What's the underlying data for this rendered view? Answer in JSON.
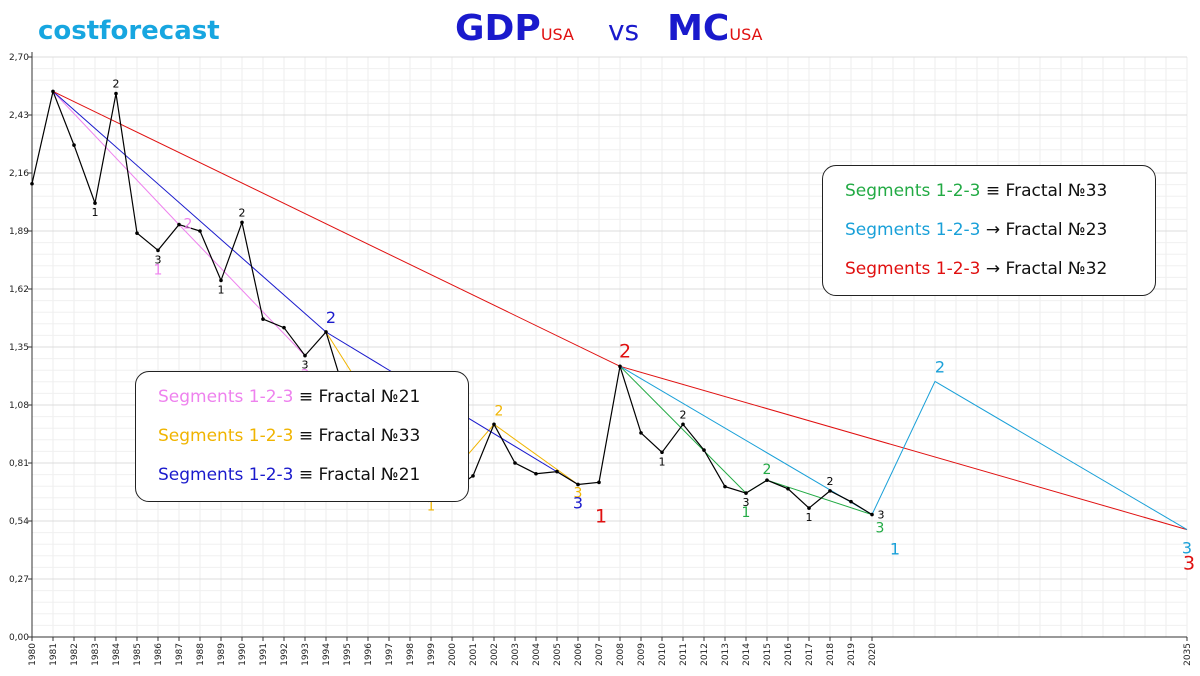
{
  "brand": "costforecast",
  "title": {
    "left": "GDP",
    "left_sub": "USA",
    "vs": "vs",
    "right": "MC",
    "right_sub": "USA"
  },
  "legend_left": [
    {
      "segment": "Segments 1-2-3",
      "relation": "≡ Fractal №21",
      "color": "#ee82ee"
    },
    {
      "segment": "Segments 1-2-3",
      "relation": "≡ Fractal №33",
      "color": "#f0b400"
    },
    {
      "segment": "Segments 1-2-3",
      "relation": "≡ Fractal №21",
      "color": "#1a1acc"
    }
  ],
  "legend_right": [
    {
      "segment": "Segments 1-2-3",
      "relation": "≡ Fractal №33",
      "color": "#22aa44"
    },
    {
      "segment": "Segments 1-2-3",
      "relation": "→ Fractal №23",
      "color": "#19a0d8"
    },
    {
      "segment": "Segments 1-2-3",
      "relation": "→ Fractal №32",
      "color": "#e01010"
    }
  ],
  "chart_data": {
    "type": "line",
    "title": "GDP USA vs MC USA",
    "xlim": [
      1980,
      2035
    ],
    "ylim": [
      0,
      2.7
    ],
    "y_ticks": [
      "0,00",
      "0,27",
      "0,54",
      "0,81",
      "1,08",
      "1,35",
      "1,62",
      "1,89",
      "2,16",
      "2,43",
      "2,70"
    ],
    "x_ticks": [
      "1980",
      "1981",
      "1982",
      "1983",
      "1984",
      "1985",
      "1986",
      "1987",
      "1988",
      "1989",
      "1990",
      "1991",
      "1992",
      "1993",
      "1994",
      "1995",
      "1996",
      "1997",
      "1998",
      "1999",
      "2000",
      "2001",
      "2002",
      "2003",
      "2004",
      "2005",
      "2006",
      "2007",
      "2008",
      "2009",
      "2010",
      "2011",
      "2012",
      "2013",
      "2014",
      "2015",
      "2016",
      "2017",
      "2018",
      "2019",
      "2020",
      "2035"
    ],
    "grid": true,
    "series": [
      {
        "color": "#000000",
        "x": [
          1980,
          1981,
          1982,
          1983,
          1984,
          1985,
          1986,
          1987,
          1988,
          1989,
          1990,
          1991,
          1992,
          1993,
          1994,
          1995,
          1996,
          1997,
          1998,
          1999,
          2000,
          2001,
          2002,
          2003,
          2004,
          2005,
          2006,
          2007,
          2008,
          2009,
          2010,
          2011,
          2012,
          2013,
          2014,
          2015,
          2016,
          2017,
          2018,
          2019,
          2020
        ],
        "y": [
          2.11,
          2.54,
          2.29,
          2.02,
          2.53,
          1.88,
          1.8,
          1.92,
          1.89,
          1.66,
          1.93,
          1.48,
          1.44,
          1.31,
          1.42,
          1.1,
          0.95,
          0.8,
          0.7,
          0.65,
          0.68,
          0.75,
          0.99,
          0.81,
          0.76,
          0.77,
          0.71,
          0.72,
          1.26,
          0.95,
          0.86,
          0.99,
          0.87,
          0.7,
          0.67,
          0.73,
          0.69,
          0.6,
          0.68,
          0.63,
          0.57
        ]
      },
      {
        "color": "#ee82ee",
        "x": [
          1981,
          1987,
          1993
        ],
        "y": [
          2.54,
          1.92,
          1.31
        ]
      },
      {
        "color": "#f0b400",
        "x": [
          1994,
          1999,
          2002,
          2006
        ],
        "y": [
          1.42,
          0.65,
          0.99,
          0.71
        ]
      },
      {
        "color": "#1a1acc",
        "x": [
          1981,
          1994,
          2006
        ],
        "y": [
          2.54,
          1.42,
          0.71
        ]
      },
      {
        "color": "#e01010",
        "x": [
          1981,
          2008,
          2035
        ],
        "y": [
          2.54,
          1.26,
          0.5
        ]
      },
      {
        "color": "#22aa44",
        "x": [
          2008,
          2014,
          2015,
          2020
        ],
        "y": [
          1.26,
          0.67,
          0.73,
          0.57
        ]
      },
      {
        "color": "#19a0d8",
        "x": [
          2008,
          2020,
          2023,
          2035
        ],
        "y": [
          1.26,
          0.57,
          1.19,
          0.5
        ]
      }
    ],
    "annotations": [
      {
        "x": 1983,
        "y": 2.02,
        "text": "1",
        "color": "#000000",
        "pos": "below",
        "size": 11
      },
      {
        "x": 1984,
        "y": 2.53,
        "text": "2",
        "color": "#000000",
        "pos": "above",
        "size": 11
      },
      {
        "x": 1986,
        "y": 1.8,
        "text": "3",
        "color": "#000000",
        "pos": "below",
        "size": 11
      },
      {
        "x": 1986,
        "y": 1.8,
        "text": "1",
        "color": "#ee82ee",
        "pos": "below2",
        "size": 14
      },
      {
        "x": 1987,
        "y": 1.92,
        "text": "2",
        "color": "#ee82ee",
        "pos": "right",
        "size": 14
      },
      {
        "x": 1989,
        "y": 1.66,
        "text": "1",
        "color": "#000000",
        "pos": "below",
        "size": 11
      },
      {
        "x": 1990,
        "y": 1.93,
        "text": "2",
        "color": "#000000",
        "pos": "above",
        "size": 11
      },
      {
        "x": 1993,
        "y": 1.31,
        "text": "3",
        "color": "#000000",
        "pos": "below",
        "size": 11
      },
      {
        "x": 1993,
        "y": 1.31,
        "text": "3",
        "color": "#ee82ee",
        "pos": "below2",
        "size": 14
      },
      {
        "x": 1993,
        "y": 1.31,
        "text": "1",
        "color": "#1a1acc",
        "pos": "below3",
        "size": 16
      },
      {
        "x": 1994,
        "y": 1.42,
        "text": "2",
        "color": "#1a1acc",
        "pos": "aboveR",
        "size": 16
      },
      {
        "x": 1999,
        "y": 0.65,
        "text": "1",
        "color": "#f0b400",
        "pos": "below",
        "size": 13
      },
      {
        "x": 2002,
        "y": 0.99,
        "text": "2",
        "color": "#f0b400",
        "pos": "aboveR",
        "size": 14
      },
      {
        "x": 2006,
        "y": 0.71,
        "text": "3",
        "color": "#f0b400",
        "pos": "below",
        "size": 14
      },
      {
        "x": 2006,
        "y": 0.71,
        "text": "3",
        "color": "#1a1acc",
        "pos": "below2",
        "size": 16
      },
      {
        "x": 2007,
        "y": 0.72,
        "text": "1",
        "color": "#e01010",
        "pos": "below3",
        "size": 19
      },
      {
        "x": 2008,
        "y": 1.26,
        "text": "2",
        "color": "#e01010",
        "pos": "aboveR",
        "size": 19
      },
      {
        "x": 2010,
        "y": 0.86,
        "text": "1",
        "color": "#000000",
        "pos": "below",
        "size": 11
      },
      {
        "x": 2011,
        "y": 0.99,
        "text": "2",
        "color": "#000000",
        "pos": "above",
        "size": 11
      },
      {
        "x": 2014,
        "y": 0.67,
        "text": "3",
        "color": "#000000",
        "pos": "below",
        "size": 11
      },
      {
        "x": 2014,
        "y": 0.67,
        "text": "1",
        "color": "#22aa44",
        "pos": "below2",
        "size": 14
      },
      {
        "x": 2015,
        "y": 0.73,
        "text": "2",
        "color": "#22aa44",
        "pos": "above",
        "size": 14
      },
      {
        "x": 2017,
        "y": 0.6,
        "text": "1",
        "color": "#000000",
        "pos": "below",
        "size": 11
      },
      {
        "x": 2018,
        "y": 0.68,
        "text": "2",
        "color": "#000000",
        "pos": "above",
        "size": 11
      },
      {
        "x": 2020,
        "y": 0.57,
        "text": "3",
        "color": "#000000",
        "pos": "right",
        "size": 11
      },
      {
        "x": 2020,
        "y": 0.57,
        "text": "3",
        "color": "#22aa44",
        "pos": "below2R",
        "size": 14
      },
      {
        "x": 2021,
        "y": 0.57,
        "text": "1",
        "color": "#19a0d8",
        "pos": "below3",
        "size": 16
      },
      {
        "x": 2023,
        "y": 1.19,
        "text": "2",
        "color": "#19a0d8",
        "pos": "aboveR",
        "size": 16
      },
      {
        "x": 2035,
        "y": 0.5,
        "text": "3",
        "color": "#19a0d8",
        "pos": "below2",
        "size": 16
      },
      {
        "x": 2035,
        "y": 0.5,
        "text": "3",
        "color": "#e01010",
        "pos": "below3",
        "size": 19
      }
    ]
  }
}
